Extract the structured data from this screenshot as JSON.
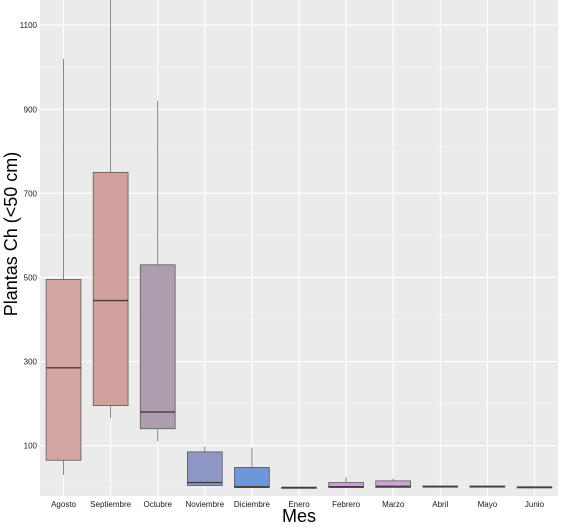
{
  "chart_data": {
    "type": "boxplot",
    "xlabel": "Mes",
    "ylabel": "Plantas Ch (<50 cm)",
    "ylim": [
      -20,
      1160
    ],
    "yticks": [
      100,
      300,
      500,
      700,
      900,
      1100
    ],
    "grid": true,
    "legend": "none",
    "categories": [
      "Agosto",
      "Septiembre",
      "Octubre",
      "Noviembre",
      "Diciembre",
      "Enero",
      "Febrero",
      "Marzo",
      "Abril",
      "Mayo",
      "Junio"
    ],
    "boxes": [
      {
        "category": "Agosto",
        "min": 30,
        "q1": 65,
        "median": 285,
        "q3": 495,
        "max": 1020,
        "color": "#d4a5a5"
      },
      {
        "category": "Septiembre",
        "min": 165,
        "q1": 195,
        "median": 445,
        "q3": 750,
        "max": 1160,
        "color": "#d1a09c"
      },
      {
        "category": "Octubre",
        "min": 110,
        "q1": 140,
        "median": 180,
        "q3": 530,
        "max": 920,
        "color": "#ae9dae"
      },
      {
        "category": "Noviembre",
        "min": 5,
        "q1": 5,
        "median": 12,
        "q3": 85,
        "max": 98,
        "color": "#8e97c4"
      },
      {
        "category": "Diciembre",
        "min": 0,
        "q1": 0,
        "median": 2,
        "q3": 48,
        "max": 95,
        "color": "#6f97d8"
      },
      {
        "category": "Enero",
        "min": 0,
        "q1": 0,
        "median": 0,
        "q3": 1,
        "max": 1,
        "color": "#b8a2d0"
      },
      {
        "category": "Febrero",
        "min": 0,
        "q1": 0,
        "median": 2,
        "q3": 12,
        "max": 25,
        "color": "#c9a0d6"
      },
      {
        "category": "Marzo",
        "min": 0,
        "q1": 0,
        "median": 3,
        "q3": 16,
        "max": 22,
        "color": "#caa6d8"
      },
      {
        "category": "Abril",
        "min": 0,
        "q1": 1,
        "median": 2,
        "q3": 4,
        "max": 4,
        "color": "#c9a5cf"
      },
      {
        "category": "Mayo",
        "min": 0,
        "q1": 1,
        "median": 2,
        "q3": 4,
        "max": 4,
        "color": "#c9a5cf"
      },
      {
        "category": "Junio",
        "min": 0,
        "q1": 0,
        "median": 1,
        "q3": 2,
        "max": 2,
        "color": "#c9a5cf"
      }
    ],
    "colors": {
      "panel": "#ebebeb",
      "grid_major": "#ffffff",
      "box_outline": "#5a5a5a",
      "median": "#4a3a3a",
      "whisker": "#6e6e6e"
    }
  }
}
